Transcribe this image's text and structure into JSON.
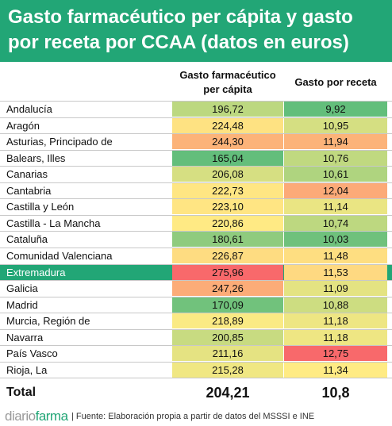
{
  "header": {
    "title": "Gasto farmacéutico per cápita y gasto por receta por CCAA (datos en euros)"
  },
  "columns": {
    "col1": "Gasto farmacéutico per cápita",
    "col2": "Gasto por receta"
  },
  "colors": {
    "accent": "#22a676",
    "low": "#63be7b",
    "mid": "#ffeb84",
    "high": "#f8696b"
  },
  "chart_data": {
    "type": "table",
    "title": "Gasto farmacéutico per cápita y gasto por receta por CCAA (datos en euros)",
    "columns": [
      "Gasto farmacéutico per cápita",
      "Gasto por receta"
    ],
    "rows": [
      {
        "label": "Andalucía",
        "values": [
          "196,72",
          "9,92"
        ]
      },
      {
        "label": "Aragón",
        "values": [
          "224,48",
          "10,95"
        ]
      },
      {
        "label": "Asturias, Principado de",
        "values": [
          "244,30",
          "11,94"
        ]
      },
      {
        "label": "Balears, Illes",
        "values": [
          "165,04",
          "10,76"
        ]
      },
      {
        "label": "Canarias",
        "values": [
          "206,08",
          "10,61"
        ]
      },
      {
        "label": "Cantabria",
        "values": [
          "222,73",
          "12,04"
        ]
      },
      {
        "label": "Castilla y León",
        "values": [
          "223,10",
          "11,14"
        ]
      },
      {
        "label": "Castilla - La Mancha",
        "values": [
          "220,86",
          "10,74"
        ]
      },
      {
        "label": "Cataluña",
        "values": [
          "180,61",
          "10,03"
        ]
      },
      {
        "label": "Comunidad Valenciana",
        "values": [
          "226,87",
          "11,48"
        ]
      },
      {
        "label": "Extremadura",
        "values": [
          "275,96",
          "11,53"
        ],
        "highlight": true
      },
      {
        "label": "Galicia",
        "values": [
          "247,26",
          "11,09"
        ]
      },
      {
        "label": "Madrid",
        "values": [
          "170,09",
          "10,88"
        ]
      },
      {
        "label": "Murcia, Región de",
        "values": [
          "218,89",
          "11,18"
        ]
      },
      {
        "label": "Navarra",
        "values": [
          "200,85",
          "11,18"
        ]
      },
      {
        "label": "País Vasco",
        "values": [
          "211,16",
          "12,75"
        ]
      },
      {
        "label": "Rioja, La",
        "values": [
          "215,28",
          "11,34"
        ]
      }
    ],
    "total": {
      "label": "Total",
      "values": [
        "204,21",
        "10,8"
      ]
    }
  },
  "footer": {
    "logo_part1": "diario",
    "logo_part2": "farma",
    "source": "| Fuente: Elaboración propia a partir de datos del MSSSI e INE"
  }
}
